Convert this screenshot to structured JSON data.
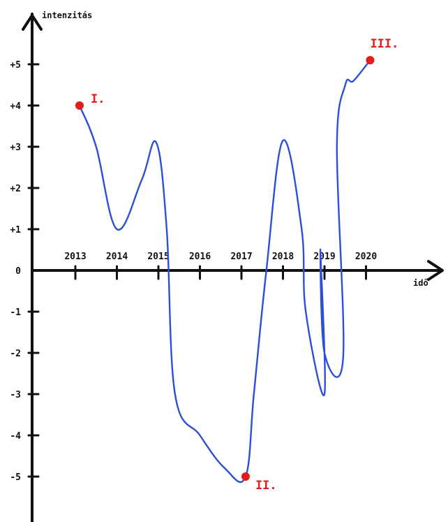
{
  "chart_data": {
    "type": "line",
    "ylabel": "intenzitás",
    "xlabel": "idő",
    "x_ticks": [
      "2013",
      "2014",
      "2015",
      "2016",
      "2017",
      "2018",
      "2019",
      "2020"
    ],
    "y_ticks": [
      "+5",
      "+4",
      "+3",
      "+2",
      "+1",
      "0",
      "-1",
      "-2",
      "-3",
      "-4",
      "-5"
    ],
    "xlim": [
      2013,
      2020
    ],
    "ylim": [
      -6,
      6
    ],
    "grid": false,
    "line_color": "#2b4fd6",
    "marker_color": "#e11d1d",
    "series": [
      {
        "points": [
          {
            "x": 2013.1,
            "y": 4.0
          },
          {
            "x": 2013.5,
            "y": 3.0
          },
          {
            "x": 2014.0,
            "y": 1.0
          },
          {
            "x": 2014.6,
            "y": 2.2
          },
          {
            "x": 2014.95,
            "y": 3.1
          },
          {
            "x": 2015.2,
            "y": 1.0
          },
          {
            "x": 2015.4,
            "y": -3.0
          },
          {
            "x": 2016.0,
            "y": -4.0
          },
          {
            "x": 2016.6,
            "y": -4.8
          },
          {
            "x": 2017.1,
            "y": -5.0
          },
          {
            "x": 2017.3,
            "y": -3.0
          },
          {
            "x": 2017.6,
            "y": 0.0
          },
          {
            "x": 2018.0,
            "y": 3.15
          },
          {
            "x": 2018.45,
            "y": 1.0
          },
          {
            "x": 2018.55,
            "y": -1.0
          },
          {
            "x": 2019.0,
            "y": -3.0
          },
          {
            "x": 2018.9,
            "y": 0.5
          },
          {
            "x": 2019.0,
            "y": -2.0
          },
          {
            "x": 2019.45,
            "y": -2.1
          },
          {
            "x": 2019.3,
            "y": 3.0
          },
          {
            "x": 2019.5,
            "y": 4.5
          },
          {
            "x": 2019.7,
            "y": 4.6
          },
          {
            "x": 2020.1,
            "y": 5.1
          }
        ]
      }
    ],
    "highlighted_points": [
      {
        "label": "I.",
        "x": 2013.1,
        "y": 4.0
      },
      {
        "label": "II.",
        "x": 2017.1,
        "y": -5.0
      },
      {
        "label": "III.",
        "x": 2020.1,
        "y": 5.1
      }
    ]
  }
}
